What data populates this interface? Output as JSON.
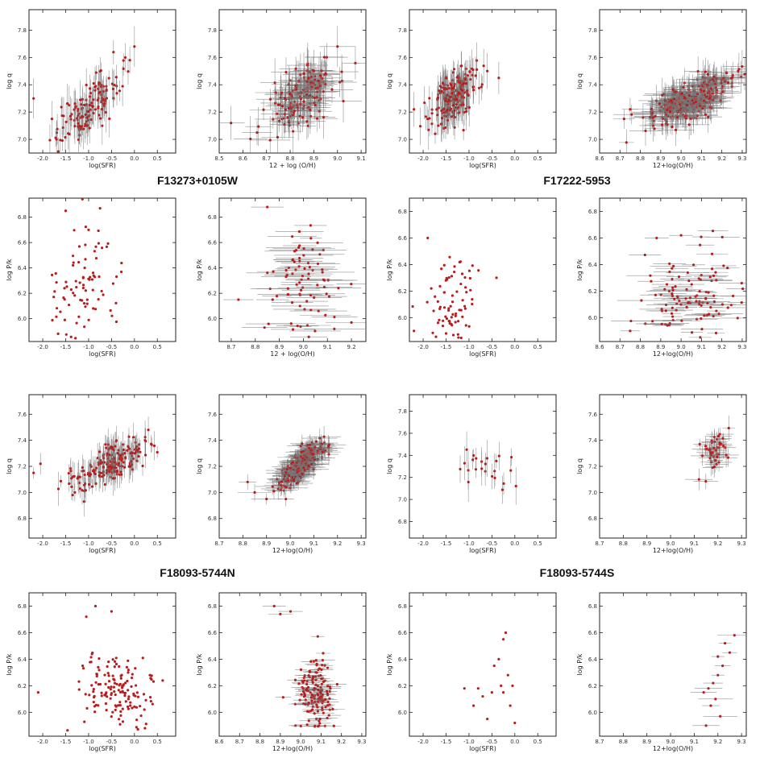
{
  "figure_labels": [
    "F13273+0105W",
    "F17222-5953",
    "F18093-5744N",
    "F18093-5744S"
  ],
  "colors": {
    "point": "#b81c1c",
    "errorbar": "#777777",
    "frame": "#222222",
    "background": "#ffffff"
  },
  "chart_data": [
    {
      "type": "scatter",
      "object": "F13273+0105W",
      "xlabel": "log(SFR)",
      "ylabel": "log q",
      "xlim": [
        -2.3,
        0.9
      ],
      "ylim": [
        6.9,
        7.95
      ],
      "xticks": [
        "-2.0",
        "-1.5",
        "-1.0",
        "-0.5",
        "0.0",
        "0.5"
      ],
      "yticks": [
        "7.0",
        "7.2",
        "7.4",
        "7.6",
        "7.8"
      ],
      "cloud": {
        "n": 140,
        "x_center": -1.05,
        "x_spread": 0.35,
        "slope": 0.3,
        "y_at_center": 7.22,
        "y_spread": 0.09,
        "err_x": 0,
        "err_y": 0.1
      },
      "extra_points": [
        [
          -2.2,
          7.3
        ],
        [
          -0.2,
          7.6
        ],
        [
          -0.1,
          7.58
        ],
        [
          0.0,
          7.68
        ],
        [
          -1.8,
          7.15
        ],
        [
          -1.7,
          7.0
        ]
      ]
    },
    {
      "type": "scatter",
      "object": "F13273+0105W",
      "xlabel": "12 + log (O/H)",
      "ylabel": "log q",
      "xlim": [
        8.5,
        9.12
      ],
      "ylim": [
        6.9,
        7.95
      ],
      "xticks": [
        "8.5",
        "8.6",
        "8.7",
        "8.8",
        "8.9",
        "9.0",
        "9.1"
      ],
      "yticks": [
        "7.0",
        "7.2",
        "7.4",
        "7.6",
        "7.8"
      ],
      "cloud": {
        "n": 170,
        "x_center": 8.85,
        "x_spread": 0.07,
        "slope": 0.8,
        "y_at_center": 7.32,
        "y_spread": 0.1,
        "err_x": 0.06,
        "err_y": 0.12
      },
      "extra_points": [
        [
          8.55,
          7.12
        ],
        [
          8.66,
          7.05
        ],
        [
          9.0,
          7.68
        ]
      ]
    },
    {
      "type": "scatter",
      "object": "F17222-5953",
      "xlabel": "log(SFR)",
      "ylabel": "log q",
      "xlim": [
        -2.3,
        0.9
      ],
      "ylim": [
        6.9,
        7.95
      ],
      "xticks": [
        "-2.0",
        "-1.5",
        "-1.0",
        "-0.5",
        "0.0",
        "0.5"
      ],
      "yticks": [
        "7.0",
        "7.2",
        "7.4",
        "7.6",
        "7.8"
      ],
      "cloud": {
        "n": 220,
        "x_center": -1.35,
        "x_spread": 0.25,
        "slope": 0.22,
        "y_at_center": 7.32,
        "y_spread": 0.09,
        "err_x": 0,
        "err_y": 0.1
      },
      "extra_points": [
        [
          -2.2,
          7.22
        ],
        [
          -0.35,
          7.45
        ],
        [
          -0.6,
          7.5
        ],
        [
          -1.9,
          7.15
        ]
      ]
    },
    {
      "type": "scatter",
      "object": "F17222-5953",
      "xlabel": "12+log(O/H)",
      "ylabel": "log q",
      "xlim": [
        8.6,
        9.32
      ],
      "ylim": [
        6.9,
        7.95
      ],
      "xticks": [
        "8.6",
        "8.7",
        "8.8",
        "8.9",
        "9.0",
        "9.1",
        "9.2",
        "9.3"
      ],
      "yticks": [
        "7.0",
        "7.2",
        "7.4",
        "7.6",
        "7.8"
      ],
      "cloud": {
        "n": 300,
        "x_center": 9.05,
        "x_spread": 0.1,
        "slope": 0.6,
        "y_at_center": 7.3,
        "y_spread": 0.07,
        "err_x": 0.07,
        "err_y": 0.09
      },
      "extra_points": [
        [
          8.72,
          7.15
        ],
        [
          8.75,
          7.22
        ],
        [
          9.28,
          7.5
        ]
      ]
    },
    {
      "type": "scatter",
      "object": "F13273+0105W",
      "xlabel": "log(SFR)",
      "ylabel": "log P/k",
      "xlim": [
        -2.3,
        0.9
      ],
      "ylim": [
        5.82,
        6.95
      ],
      "xticks": [
        "-2.0",
        "-1.5",
        "-1.0",
        "-0.5",
        "0.0",
        "0.5"
      ],
      "yticks": [
        "6.0",
        "6.2",
        "6.4",
        "6.6",
        "6.8"
      ],
      "cloud": {
        "n": 85,
        "x_center": -1.1,
        "x_spread": 0.38,
        "slope": 0,
        "y_at_center": 6.25,
        "y_spread": 0.24,
        "err_x": 0,
        "err_y": 0
      },
      "extra_points": [
        [
          -1.5,
          6.85
        ],
        [
          -1.0,
          6.7
        ],
        [
          -0.75,
          6.87
        ]
      ]
    },
    {
      "type": "scatter",
      "object": "F13273+0105W",
      "xlabel": "12 + log(O/H)",
      "ylabel": "log P/k",
      "xlim": [
        8.65,
        9.26
      ],
      "ylim": [
        5.82,
        6.95
      ],
      "xticks": [
        "8.7",
        "8.8",
        "8.9",
        "9.0",
        "9.1",
        "9.2"
      ],
      "yticks": [
        "6.0",
        "6.2",
        "6.4",
        "6.6",
        "6.8"
      ],
      "cloud": {
        "n": 85,
        "x_center": 9.0,
        "x_spread": 0.07,
        "slope": 0,
        "y_at_center": 6.25,
        "y_spread": 0.24,
        "err_x": 0.09,
        "err_y": 0
      },
      "extra_points": [
        [
          8.85,
          6.88
        ],
        [
          8.73,
          6.15
        ],
        [
          9.2,
          5.97
        ]
      ]
    },
    {
      "type": "scatter",
      "object": "F17222-5953",
      "xlabel": "log(SFR)",
      "ylabel": "log P/k",
      "xlim": [
        -2.3,
        0.9
      ],
      "ylim": [
        5.82,
        6.9
      ],
      "xticks": [
        "-2.0",
        "-1.5",
        "-1.0",
        "-0.5",
        "0.0",
        "0.5"
      ],
      "yticks": [
        "6.0",
        "6.2",
        "6.4",
        "6.6",
        "6.8"
      ],
      "cloud": {
        "n": 80,
        "x_center": -1.35,
        "x_spread": 0.28,
        "slope": 0,
        "y_at_center": 6.1,
        "y_spread": 0.16,
        "err_x": 0,
        "err_y": 0
      },
      "extra_points": [
        [
          -1.9,
          6.6
        ],
        [
          -2.2,
          5.9
        ],
        [
          -0.4,
          6.3
        ]
      ]
    },
    {
      "type": "scatter",
      "object": "F17222-5953",
      "xlabel": "12+log(O/H)",
      "ylabel": "log P/k",
      "xlim": [
        8.6,
        9.32
      ],
      "ylim": [
        5.82,
        6.9
      ],
      "xticks": [
        "8.6",
        "8.7",
        "8.8",
        "8.9",
        "9.0",
        "9.1",
        "9.2",
        "9.3"
      ],
      "yticks": [
        "6.0",
        "6.2",
        "6.4",
        "6.6",
        "6.8"
      ],
      "cloud": {
        "n": 110,
        "x_center": 9.05,
        "x_spread": 0.12,
        "slope": 0,
        "y_at_center": 6.15,
        "y_spread": 0.17,
        "err_x": 0.08,
        "err_y": 0
      },
      "extra_points": [
        [
          8.75,
          5.9
        ],
        [
          8.88,
          6.6
        ],
        [
          9.0,
          6.62
        ]
      ]
    },
    {
      "type": "scatter",
      "object": "F18093-5744N",
      "xlabel": "log(SFR)",
      "ylabel": "log q",
      "xlim": [
        -2.3,
        0.9
      ],
      "ylim": [
        6.65,
        7.75
      ],
      "xticks": [
        "-2.0",
        "-1.5",
        "-1.0",
        "-0.5",
        "0.0",
        "0.5"
      ],
      "yticks": [
        "6.8",
        "7.0",
        "7.2",
        "7.4",
        "7.6"
      ],
      "cloud": {
        "n": 200,
        "x_center": -0.5,
        "x_spread": 0.4,
        "slope": 0.15,
        "y_at_center": 7.22,
        "y_spread": 0.07,
        "err_x": 0,
        "err_y": 0.09
      },
      "extra_points": [
        [
          -2.2,
          7.15
        ],
        [
          -2.05,
          7.22
        ],
        [
          -1.3,
          7.0
        ],
        [
          -1.1,
          6.93
        ]
      ]
    },
    {
      "type": "scatter",
      "object": "F18093-5744N",
      "xlabel": "12+log(O/H)",
      "ylabel": "log q",
      "xlim": [
        8.7,
        9.32
      ],
      "ylim": [
        6.65,
        7.75
      ],
      "xticks": [
        "8.7",
        "8.8",
        "8.9",
        "9.0",
        "9.1",
        "9.2",
        "9.3"
      ],
      "yticks": [
        "6.8",
        "7.0",
        "7.2",
        "7.4",
        "7.6"
      ],
      "cloud": {
        "n": 260,
        "x_center": 9.05,
        "x_spread": 0.05,
        "slope": 1.5,
        "y_at_center": 7.22,
        "y_spread": 0.05,
        "err_x": 0.05,
        "err_y": 0.06
      },
      "extra_points": [
        [
          8.82,
          7.08
        ],
        [
          8.85,
          7.0
        ],
        [
          8.9,
          6.95
        ]
      ]
    },
    {
      "type": "scatter",
      "object": "F18093-5744S",
      "xlabel": "log(SFR)",
      "ylabel": "log q",
      "xlim": [
        -2.3,
        0.9
      ],
      "ylim": [
        6.65,
        7.95
      ],
      "xticks": [
        "-2.0",
        "-1.5",
        "-1.0",
        "-0.5",
        "0.0",
        "0.5"
      ],
      "yticks": [
        "6.8",
        "7.0",
        "7.2",
        "7.4",
        "7.6",
        "7.8"
      ],
      "cloud": {
        "n": 24,
        "x_center": -0.55,
        "x_spread": 0.35,
        "slope": 0,
        "y_at_center": 7.3,
        "y_spread": 0.09,
        "err_x": 0,
        "err_y": 0.12
      },
      "extra_points": []
    },
    {
      "type": "scatter",
      "object": "F18093-5744S",
      "xlabel": "12+log(O/H)",
      "ylabel": "log q",
      "xlim": [
        8.7,
        9.32
      ],
      "ylim": [
        6.65,
        7.75
      ],
      "xticks": [
        "8.7",
        "8.8",
        "8.9",
        "9.0",
        "9.1",
        "9.2",
        "9.3"
      ],
      "yticks": [
        "6.8",
        "7.0",
        "7.2",
        "7.4",
        "7.6"
      ],
      "cloud": {
        "n": 45,
        "x_center": 9.18,
        "x_spread": 0.03,
        "slope": 1.2,
        "y_at_center": 7.3,
        "y_spread": 0.07,
        "err_x": 0.04,
        "err_y": 0.07
      },
      "extra_points": [
        [
          9.12,
          7.1
        ]
      ]
    },
    {
      "type": "scatter",
      "object": "F18093-5744N",
      "xlabel": "log(SFR)",
      "ylabel": "log P/k",
      "xlim": [
        -2.3,
        0.9
      ],
      "ylim": [
        5.82,
        6.9
      ],
      "xticks": [
        "-2.0",
        "-1.5",
        "-1.0",
        "-0.5",
        "0.0",
        "0.5"
      ],
      "yticks": [
        "6.0",
        "6.2",
        "6.4",
        "6.6",
        "6.8"
      ],
      "cloud": {
        "n": 150,
        "x_center": -0.35,
        "x_spread": 0.4,
        "slope": 0,
        "y_at_center": 6.15,
        "y_spread": 0.14,
        "err_x": 0,
        "err_y": 0
      },
      "extra_points": [
        [
          -2.1,
          6.15
        ],
        [
          -1.05,
          6.72
        ],
        [
          -0.85,
          6.8
        ],
        [
          -0.5,
          6.76
        ]
      ]
    },
    {
      "type": "scatter",
      "object": "F18093-5744N",
      "xlabel": "12+log(O/H)",
      "ylabel": "log P/k",
      "xlim": [
        8.6,
        9.32
      ],
      "ylim": [
        5.82,
        6.9
      ],
      "xticks": [
        "8.6",
        "8.7",
        "8.8",
        "8.9",
        "9.0",
        "9.1",
        "9.2",
        "9.3"
      ],
      "yticks": [
        "6.0",
        "6.2",
        "6.4",
        "6.6",
        "6.8"
      ],
      "cloud": {
        "n": 150,
        "x_center": 9.07,
        "x_spread": 0.05,
        "slope": 0,
        "y_at_center": 6.15,
        "y_spread": 0.14,
        "err_x": 0.04,
        "err_y": 0
      },
      "extra_points": [
        [
          8.87,
          6.8
        ],
        [
          8.9,
          6.74
        ],
        [
          8.95,
          6.76
        ]
      ]
    },
    {
      "type": "scatter",
      "object": "F18093-5744S",
      "xlabel": "log(SFR)",
      "ylabel": "log P/k",
      "xlim": [
        -2.3,
        0.9
      ],
      "ylim": [
        5.82,
        6.9
      ],
      "xticks": [
        "-2.0",
        "-1.5",
        "-1.0",
        "-0.5",
        "0.0",
        "0.5"
      ],
      "yticks": [
        "6.0",
        "6.2",
        "6.4",
        "6.6",
        "6.8"
      ],
      "cloud": {
        "n": 0,
        "x_center": 0,
        "x_spread": 0,
        "slope": 0,
        "y_at_center": 0,
        "y_spread": 0,
        "err_x": 0,
        "err_y": 0
      },
      "extra_points": [
        [
          -1.1,
          6.18
        ],
        [
          -0.9,
          6.05
        ],
        [
          -0.7,
          6.12
        ],
        [
          -0.5,
          6.15
        ],
        [
          -0.35,
          6.4
        ],
        [
          -0.25,
          6.55
        ],
        [
          -0.2,
          6.6
        ],
        [
          -0.15,
          6.28
        ],
        [
          -0.1,
          6.05
        ],
        [
          -0.05,
          6.2
        ],
        [
          -0.6,
          5.95
        ],
        [
          -0.3,
          6.2
        ],
        [
          -0.8,
          6.18
        ],
        [
          -0.45,
          6.35
        ],
        [
          0.0,
          5.92
        ],
        [
          -0.25,
          6.15
        ]
      ]
    },
    {
      "type": "scatter",
      "object": "F18093-5744S",
      "xlabel": "12+log(O/H)",
      "ylabel": "log P/k",
      "xlim": [
        8.7,
        9.32
      ],
      "ylim": [
        5.82,
        6.9
      ],
      "xticks": [
        "8.7",
        "8.8",
        "8.9",
        "9.0",
        "9.1",
        "9.2",
        "9.3"
      ],
      "yticks": [
        "6.0",
        "6.2",
        "6.4",
        "6.6",
        "6.8"
      ],
      "cloud": {
        "n": 0,
        "x_center": 0,
        "x_spread": 0,
        "slope": 0,
        "y_at_center": 0,
        "y_spread": 0,
        "err_x": 0.05,
        "err_y": 0
      },
      "extra_points": [
        [
          9.15,
          5.9
        ],
        [
          9.17,
          6.05
        ],
        [
          9.14,
          6.15
        ],
        [
          9.16,
          6.18
        ],
        [
          9.2,
          6.28
        ],
        [
          9.22,
          6.35
        ],
        [
          9.25,
          6.45
        ],
        [
          9.23,
          6.52
        ],
        [
          9.27,
          6.58
        ],
        [
          9.2,
          6.42
        ],
        [
          9.18,
          6.22
        ],
        [
          9.19,
          6.1
        ],
        [
          9.21,
          5.97
        ]
      ]
    }
  ]
}
